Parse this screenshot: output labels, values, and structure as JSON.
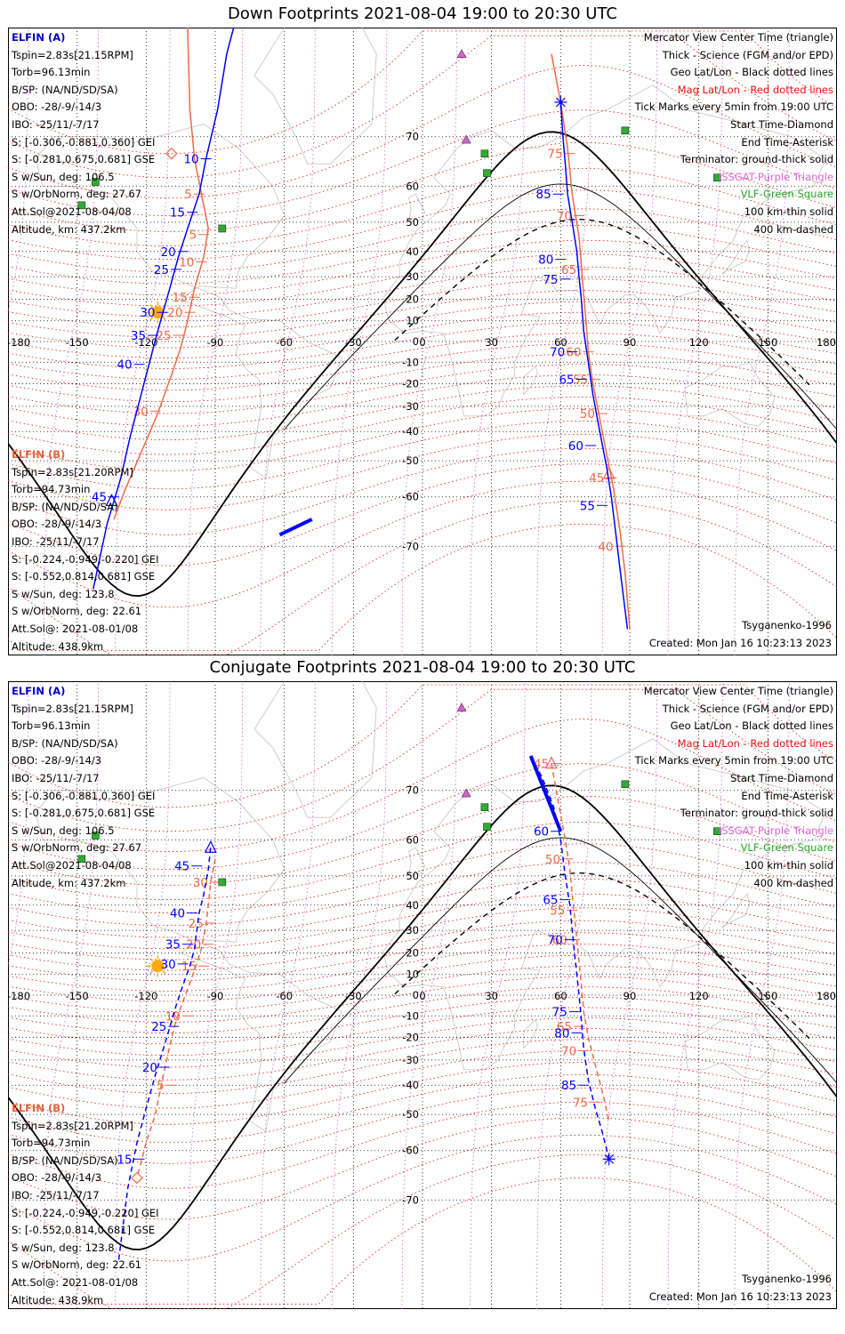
{
  "titles": [
    "Down Footprints 2021-08-04 19:00 to 20:30 UTC",
    "Conjugate Footprints 2021-08-04 19:00 to 20:30 UTC"
  ],
  "legend": [
    {
      "text": "Mercator View Center Time (triangle)",
      "color": "#000000"
    },
    {
      "text": "Thick - Science (FGM and/or EPD)",
      "color": "#000000"
    },
    {
      "text": "Geo Lat/Lon - Black dotted lines",
      "color": "#000000"
    },
    {
      "text": "Mag Lat/Lon - Red dotted lines",
      "color": "#e81010"
    },
    {
      "text": "Tick Marks every 5min from 19:00 UTC",
      "color": "#000000"
    },
    {
      "text": "Start Time-Diamond",
      "color": "#000000"
    },
    {
      "text": "End Time-Asterisk",
      "color": "#000000"
    },
    {
      "text": "Terminator: ground-thick solid",
      "color": "#000000"
    },
    {
      "text": "ISSGAT-Purple Triangle",
      "color": "#dd66dd"
    },
    {
      "text": "VLF-Green Square",
      "color": "#22aa22"
    },
    {
      "text": "100 km-thin solid",
      "color": "#000000"
    },
    {
      "text": "400 km-dashed",
      "color": "#000000"
    }
  ],
  "elfin_a": {
    "header": "ELFIN (A)",
    "rows": [
      "Tspin=2.83s[21.15RPM]",
      "Torb=96.13min",
      "B/SP: (NA/ND/SD/SA)",
      "OBO: -28/-9/-14/3",
      "IBO: -25/11/-7/17",
      "S: [-0.306,-0.881,0.360] GEI",
      "S: [-0.281,0.675,0.681] GSE",
      "S w/Sun, deg: 106.5",
      "S w/OrbNorm, deg: 27.67",
      "Att.Sol@2021-08-04/08",
      "Altitude, km: 437.2km"
    ]
  },
  "elfin_b": {
    "header": "ELFIN (B)",
    "rows": [
      "Tspin=2.83s[21.20RPM]",
      "Torb=94.73min",
      "B/SP: (NA/ND/SD/SA)",
      "OBO: -28/-9/-14/3",
      "IBO: -25/11/-7/17",
      "S: [-0.224,-0.949,-0.220] GEI",
      "S: [-0.552,0.814,0.681] GSE",
      "S w/Sun, deg: 123.8",
      "S w/OrbNorm, deg: 22.61",
      "Att.Sol@: 2021-08-01/08",
      "Altitude: 438.9km"
    ]
  },
  "credit_model": "Tsyganenko-1996",
  "credit_created": "Created: Mon Jan 16 10:23:13 2023",
  "map": {
    "lon_labels": [
      "-180",
      "-150",
      "-120",
      "-90",
      "-60",
      "-30",
      "0",
      "30",
      "60",
      "90",
      "120",
      "150",
      "180"
    ],
    "lon_values": [
      -180,
      -150,
      -120,
      -90,
      -60,
      -30,
      0,
      30,
      60,
      90,
      120,
      150,
      180
    ],
    "lat_labels": [
      "70",
      "60",
      "50",
      "40",
      "30",
      "20",
      "10",
      "0",
      "-10",
      "-20",
      "-30",
      "-40",
      "-50",
      "-60",
      "-70"
    ],
    "lat_values": [
      70,
      60,
      50,
      40,
      30,
      20,
      10,
      0,
      -10,
      -20,
      -30,
      -40,
      -50,
      -60,
      -70
    ],
    "projection": "mercator",
    "colors": {
      "elfin_a": "#0000ff",
      "elfin_b": "#ef6a45",
      "grid_geo": "#000000",
      "grid_mag": "#e81010",
      "coast": "#bbbbbb",
      "sun": "#ffaa00",
      "issgat": "#cc66cc",
      "vlf": "#33aa33"
    }
  },
  "panels": [
    {
      "sun": {
        "lon": -115,
        "lat": 14
      },
      "issgat": [
        {
          "lon": 17,
          "lat": 80
        },
        {
          "lon": 19,
          "lat": 69.5
        }
      ],
      "vlf": [
        {
          "lon": -142,
          "lat": 61
        },
        {
          "lon": -148,
          "lat": 55
        },
        {
          "lon": -87,
          "lat": 48
        },
        {
          "lon": 27,
          "lat": 67
        },
        {
          "lon": 28,
          "lat": 63
        },
        {
          "lon": 88,
          "lat": 71
        },
        {
          "lon": 128,
          "lat": 62
        }
      ],
      "track_a": {
        "style": "solid",
        "points": [
          [
            -82,
            82
          ],
          [
            -85,
            80
          ],
          [
            -89,
            74
          ],
          [
            -94,
            66
          ],
          [
            -97,
            58
          ],
          [
            -102,
            48
          ],
          [
            -106,
            38
          ],
          [
            -110,
            24
          ],
          [
            -115,
            5
          ],
          [
            -119,
            -12
          ],
          [
            -123,
            -28
          ],
          [
            -127,
            -42
          ],
          [
            -131,
            -55
          ],
          [
            -137,
            -66
          ],
          [
            -143,
            -76
          ]
        ],
        "ticks": [
          {
            "label": "10",
            "lon": -94,
            "lat": 66
          },
          {
            "label": "15",
            "lon": -100,
            "lat": 53
          },
          {
            "label": "20",
            "lon": -104,
            "lat": 40
          },
          {
            "label": "25",
            "lon": -107,
            "lat": 33
          },
          {
            "label": "30",
            "lon": -113,
            "lat": 14
          },
          {
            "label": "35",
            "lon": -117,
            "lat": 3
          },
          {
            "label": "40",
            "lon": -123,
            "lat": -11
          },
          {
            "label": "45",
            "lon": -134,
            "lat": -60
          }
        ],
        "triangle": {
          "lon": -135,
          "lat": -61
        }
      },
      "track_b": {
        "style": "solid",
        "points": [
          [
            -102,
            82
          ],
          [
            -101,
            74
          ],
          [
            -99,
            66
          ],
          [
            -96,
            58
          ],
          [
            -93,
            48
          ],
          [
            -95,
            38
          ],
          [
            -99,
            25
          ],
          [
            -102,
            10
          ],
          [
            -105,
            -3
          ],
          [
            -109,
            -16
          ],
          [
            -115,
            -33
          ],
          [
            -122,
            -47
          ],
          [
            -129,
            -58
          ],
          [
            -134,
            -65
          ]
        ],
        "ticks": [
          {
            "label": "5",
            "lon": -97,
            "lat": 58
          },
          {
            "label": "5",
            "lon": -95,
            "lat": 46
          },
          {
            "label": "10",
            "lon": -96,
            "lat": 36
          },
          {
            "label": "15",
            "lon": -99,
            "lat": 21
          },
          {
            "label": "20",
            "lon": -101,
            "lat": 14
          },
          {
            "label": "25",
            "lon": -106,
            "lat": 3
          },
          {
            "label": "30",
            "lon": -116,
            "lat": -32
          }
        ],
        "diamond": {
          "lon": -109,
          "lat": 67
        }
      },
      "track_a2": {
        "style": "solid",
        "points": [
          [
            60,
            75
          ],
          [
            61,
            70
          ],
          [
            62,
            65
          ],
          [
            63,
            58
          ],
          [
            65,
            50
          ],
          [
            67,
            40
          ],
          [
            68,
            30
          ],
          [
            69,
            20
          ],
          [
            70,
            5
          ],
          [
            72,
            -10
          ],
          [
            74,
            -25
          ],
          [
            77,
            -40
          ],
          [
            80,
            -52
          ],
          [
            82,
            -60
          ],
          [
            84,
            -68
          ],
          [
            86,
            -74
          ],
          [
            89,
            -80
          ]
        ],
        "ticks": [
          {
            "label": "85",
            "lon": 59,
            "lat": 58
          },
          {
            "label": "80",
            "lon": 60,
            "lat": 37
          },
          {
            "label": "75",
            "lon": 62,
            "lat": 29
          },
          {
            "label": "70",
            "lon": 65,
            "lat": -5
          },
          {
            "label": "65",
            "lon": 69,
            "lat": -18
          },
          {
            "label": "60",
            "lon": 73,
            "lat": -45
          },
          {
            "label": "55",
            "lon": 78,
            "lat": -62
          }
        ],
        "asterisk": {
          "lon": 60,
          "lat": 75
        },
        "science": [
          [
            -48,
            -65
          ],
          [
            -62,
            -68
          ]
        ]
      },
      "track_b2": {
        "style": "solid",
        "points": [
          [
            56,
            80
          ],
          [
            60,
            75
          ],
          [
            63,
            68
          ],
          [
            65,
            58
          ],
          [
            68,
            45
          ],
          [
            69,
            35
          ],
          [
            70,
            22
          ],
          [
            71,
            10
          ],
          [
            72,
            -5
          ],
          [
            74,
            -20
          ],
          [
            77,
            -35
          ],
          [
            80,
            -48
          ],
          [
            83,
            -58
          ],
          [
            86,
            -68
          ],
          [
            88,
            -74
          ],
          [
            90,
            -80
          ]
        ],
        "ticks": [
          {
            "label": "75",
            "lon": 64,
            "lat": 67
          },
          {
            "label": "70",
            "lon": 68,
            "lat": 52
          },
          {
            "label": "65",
            "lon": 70,
            "lat": 33
          },
          {
            "label": "60",
            "lon": 72,
            "lat": -5
          },
          {
            "label": "55",
            "lon": 75,
            "lat": -18
          },
          {
            "label": "50",
            "lon": 78,
            "lat": -33
          },
          {
            "label": "45",
            "lon": 82,
            "lat": -55
          },
          {
            "label": "40",
            "lon": 86,
            "lat": -70
          }
        ],
        "triangle": {
          "lon": 81,
          "lat": -54
        }
      }
    },
    {
      "sun": {
        "lon": -115,
        "lat": 14
      },
      "issgat": [
        {
          "lon": 17,
          "lat": 80
        },
        {
          "lon": 19,
          "lat": 69.5
        }
      ],
      "vlf": [
        {
          "lon": -142,
          "lat": 61
        },
        {
          "lon": -148,
          "lat": 55
        },
        {
          "lon": -87,
          "lat": 48
        },
        {
          "lon": 27,
          "lat": 67
        },
        {
          "lon": 28,
          "lat": 63
        },
        {
          "lon": 88,
          "lat": 71
        },
        {
          "lon": 128,
          "lat": 62
        }
      ],
      "track_a": {
        "style": "dashed",
        "points": [
          [
            -92,
            58
          ],
          [
            -93,
            52
          ],
          [
            -95,
            44
          ],
          [
            -97,
            37
          ],
          [
            -98,
            30
          ],
          [
            -99,
            22
          ],
          [
            -101,
            14
          ],
          [
            -104,
            5
          ],
          [
            -107,
            -5
          ],
          [
            -111,
            -20
          ],
          [
            -116,
            -36
          ],
          [
            -120,
            -48
          ],
          [
            -124,
            -58
          ],
          [
            -128,
            -68
          ],
          [
            -132,
            -78
          ]
        ],
        "ticks": [
          {
            "label": "45",
            "lon": -98,
            "lat": 53
          },
          {
            "label": "40",
            "lon": -100,
            "lat": 37
          },
          {
            "label": "35",
            "lon": -102,
            "lat": 24
          },
          {
            "label": "30",
            "lon": -104,
            "lat": 15
          },
          {
            "label": "25",
            "lon": -108,
            "lat": -15
          },
          {
            "label": "20",
            "lon": -112,
            "lat": -33
          },
          {
            "label": "15",
            "lon": -123,
            "lat": -62
          }
        ],
        "triangle": {
          "lon": -92,
          "lat": 58
        }
      },
      "track_b": {
        "style": "dashed",
        "points": [
          [
            -90,
            55
          ],
          [
            -92,
            48
          ],
          [
            -93,
            40
          ],
          [
            -94,
            32
          ],
          [
            -96,
            22
          ],
          [
            -99,
            12
          ],
          [
            -103,
            0
          ],
          [
            -107,
            -12
          ],
          [
            -110,
            -25
          ],
          [
            -113,
            -38
          ],
          [
            -116,
            -50
          ],
          [
            -120,
            -58
          ],
          [
            -124,
            -66
          ]
        ],
        "ticks": [
          {
            "label": "30",
            "lon": -90,
            "lat": 48
          },
          {
            "label": "25",
            "lon": -92,
            "lat": 33
          },
          {
            "label": "20",
            "lon": -93,
            "lat": 24
          },
          {
            "label": "15",
            "lon": -95,
            "lat": 14
          },
          {
            "label": "10",
            "lon": -102,
            "lat": -10
          },
          {
            "label": "5",
            "lon": -109,
            "lat": -40
          }
        ],
        "diamond": {
          "lon": -124,
          "lat": -66
        }
      },
      "track_a2": {
        "style": "dashed",
        "points": [
          [
            47,
            75
          ],
          [
            52,
            72
          ],
          [
            57,
            67
          ],
          [
            60,
            60
          ],
          [
            62,
            50
          ],
          [
            64,
            40
          ],
          [
            65,
            30
          ],
          [
            66,
            20
          ],
          [
            67,
            10
          ],
          [
            68,
            0
          ],
          [
            69,
            -12
          ],
          [
            70,
            -25
          ],
          [
            72,
            -38
          ],
          [
            75,
            -48
          ],
          [
            78,
            -55
          ],
          [
            81,
            -62
          ]
        ],
        "ticks": [
          {
            "label": "60",
            "lon": 58,
            "lat": 62
          },
          {
            "label": "65",
            "lon": 62,
            "lat": 42
          },
          {
            "label": "70",
            "lon": 64,
            "lat": 26
          },
          {
            "label": "75",
            "lon": 66,
            "lat": -8
          },
          {
            "label": "80",
            "lon": 67,
            "lat": -18
          },
          {
            "label": "85",
            "lon": 70,
            "lat": -40
          }
        ],
        "asterisk": {
          "lon": 81,
          "lat": -62
        },
        "science": [
          [
            47,
            75
          ],
          [
            60,
            62
          ]
        ]
      },
      "track_b2": {
        "style": "dashed",
        "points": [
          [
            56,
            74
          ],
          [
            59,
            68
          ],
          [
            62,
            60
          ],
          [
            64,
            52
          ],
          [
            65,
            44
          ],
          [
            66,
            36
          ],
          [
            67,
            26
          ],
          [
            68,
            16
          ],
          [
            69,
            5
          ],
          [
            70,
            -8
          ],
          [
            72,
            -20
          ],
          [
            75,
            -32
          ],
          [
            78,
            -42
          ],
          [
            81,
            -52
          ]
        ],
        "ticks": [
          {
            "label": "45",
            "lon": 58,
            "lat": 74
          },
          {
            "label": "50",
            "lon": 63,
            "lat": 55
          },
          {
            "label": "55",
            "lon": 65,
            "lat": 38
          },
          {
            "label": "60",
            "lon": 66,
            "lat": 26
          },
          {
            "label": "65",
            "lon": 68,
            "lat": -15
          },
          {
            "label": "70",
            "lon": 70,
            "lat": -26
          },
          {
            "label": "75",
            "lon": 75,
            "lat": -46
          }
        ],
        "triangle": {
          "lon": 56,
          "lat": 74
        }
      }
    }
  ]
}
